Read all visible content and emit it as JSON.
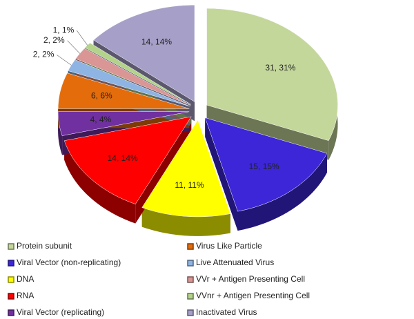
{
  "chart_data": {
    "type": "pie",
    "categories": [
      "Protein subunit",
      "Viral Vector (non-replicating)",
      "DNA",
      "RNA",
      "Viral Vector (replicating)",
      "Virus Like Particle",
      "Live Attenuated Virus",
      "VVr + Antigen Presenting Cell",
      "VVnr + Antigen Presenting Cell",
      "Inactivated Virus"
    ],
    "values": [
      31,
      15,
      11,
      14,
      4,
      6,
      2,
      2,
      1,
      14
    ],
    "value_labels": [
      "31, 31%",
      "15, 15%",
      "11, 11%",
      "14, 14%",
      "4, 4%",
      "6, 6%",
      "2, 2%",
      "2, 2%",
      "1, 1%",
      "14, 14%"
    ],
    "colors": [
      "#c4d79b",
      "#3c26d8",
      "#ffff00",
      "#ff0000",
      "#7030a0",
      "#e46c0a",
      "#8eb4e3",
      "#d99694",
      "#b3d38b",
      "#a6a0c8"
    ],
    "legend": "bottom"
  }
}
